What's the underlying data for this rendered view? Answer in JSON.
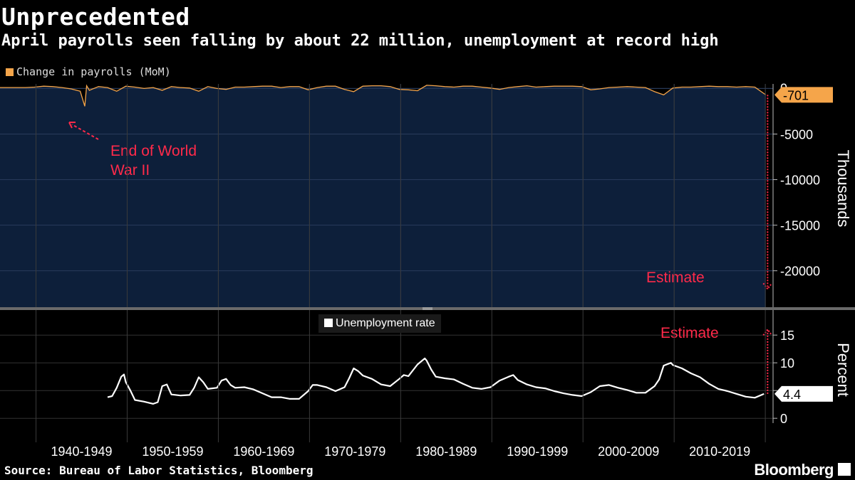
{
  "title": "Unprecedented",
  "subtitle": "April payrolls seen falling by about 22 million, unemployment at record high",
  "source": "Source: Bureau of Labor Statistics, Bloomberg",
  "brand": "Bloomberg",
  "colors": {
    "payrolls_line": "#f5a54a",
    "payrolls_fill": "#0d1f3a",
    "unemployment_line": "#ffffff",
    "annotation": "#ff2a4a",
    "background": "#000000"
  },
  "chart_data": [
    {
      "type": "area",
      "legend": "Change in payrolls (MoM)",
      "ylabel": "Thousands",
      "ylim": [
        -24000,
        500
      ],
      "yticks": [
        0,
        -5000,
        -10000,
        -15000,
        -20000
      ],
      "last_value_label": "-701",
      "annotations": [
        {
          "text": "End of World",
          "text2": "War II"
        },
        {
          "text": "Estimate"
        }
      ],
      "series": [
        {
          "x": [
            1939,
            1940,
            1941,
            1942,
            1943,
            1944,
            1945,
            1945.5,
            1945.7,
            1946,
            1947,
            1948,
            1949,
            1950,
            1951,
            1952,
            1953,
            1954,
            1955,
            1956,
            1957,
            1958,
            1959,
            1960,
            1961,
            1962,
            1963,
            1964,
            1965,
            1966,
            1967,
            1968,
            1969,
            1970,
            1971,
            1972,
            1973,
            1974,
            1975,
            1976,
            1977,
            1978,
            1979,
            1980,
            1981,
            1982,
            1983,
            1984,
            1985,
            1986,
            1987,
            1988,
            1989,
            1990,
            1991,
            1992,
            1993,
            1994,
            1995,
            1996,
            1997,
            1998,
            1999,
            2000,
            2001,
            2002,
            2003,
            2004,
            2005,
            2006,
            2007,
            2008,
            2009,
            2010,
            2011,
            2012,
            2013,
            2014,
            2015,
            2016,
            2017,
            2018,
            2019,
            2020.2
          ],
          "values": [
            100,
            150,
            250,
            200,
            100,
            -50,
            -300,
            -1950,
            300,
            -200,
            200,
            100,
            -300,
            250,
            150,
            0,
            100,
            -200,
            200,
            100,
            50,
            -300,
            200,
            0,
            -100,
            150,
            150,
            200,
            250,
            250,
            100,
            200,
            200,
            -150,
            100,
            250,
            250,
            -100,
            -350,
            250,
            300,
            300,
            200,
            -100,
            -150,
            -250,
            350,
            300,
            200,
            150,
            250,
            250,
            150,
            50,
            -100,
            100,
            200,
            300,
            150,
            200,
            250,
            250,
            250,
            200,
            -150,
            -50,
            100,
            150,
            200,
            150,
            100,
            -350,
            -700,
            50,
            150,
            150,
            200,
            250,
            200,
            200,
            150,
            200,
            150,
            -701
          ]
        }
      ],
      "estimate_value": -22000
    },
    {
      "type": "line",
      "legend": "Unemployment rate",
      "ylabel": "Percent",
      "ylim": [
        -1,
        19
      ],
      "yticks": [
        0,
        5,
        10,
        15
      ],
      "last_value_label": "4.4",
      "annotations": [
        {
          "text": "Estimate"
        }
      ],
      "x_categories": [
        "1940-1949",
        "1950-1959",
        "1960-1969",
        "1970-1979",
        "1980-1989",
        "1990-1999",
        "2000-2009",
        "2010-2019"
      ],
      "series": [
        {
          "x": [
            1948,
            1948.5,
            1949,
            1949.5,
            1949.8,
            1950,
            1950.5,
            1951,
            1952,
            1953,
            1953.5,
            1954,
            1954.5,
            1955,
            1956,
            1957,
            1957.5,
            1958,
            1958.5,
            1959,
            1960,
            1960.5,
            1961,
            1961.5,
            1962,
            1963,
            1964,
            1965,
            1966,
            1967,
            1968,
            1969,
            1970,
            1970.5,
            1971,
            1972,
            1973,
            1974,
            1974.5,
            1975,
            1975.5,
            1976,
            1977,
            1978,
            1979,
            1980,
            1980.5,
            1981,
            1982,
            1982.8,
            1983,
            1983.5,
            1984,
            1985,
            1986,
            1987,
            1988,
            1989,
            1990,
            1991,
            1992,
            1992.5,
            1993,
            1994,
            1995,
            1996,
            1997,
            1998,
            1999,
            2000,
            2001,
            2002,
            2003,
            2004,
            2005,
            2006,
            2007,
            2008,
            2008.5,
            2009,
            2009.8,
            2010,
            2011,
            2012,
            2013,
            2014,
            2015,
            2016,
            2017,
            2018,
            2019,
            2020
          ],
          "values": [
            3.8,
            4.0,
            5.5,
            7.5,
            7.9,
            6.5,
            5.0,
            3.3,
            3.0,
            2.6,
            2.9,
            5.8,
            6.1,
            4.3,
            4.1,
            4.2,
            5.5,
            7.4,
            6.5,
            5.3,
            5.5,
            6.8,
            7.1,
            6.0,
            5.5,
            5.6,
            5.2,
            4.5,
            3.8,
            3.8,
            3.5,
            3.5,
            4.9,
            6.0,
            6.0,
            5.6,
            4.9,
            5.6,
            7.2,
            9.0,
            8.5,
            7.7,
            7.1,
            6.1,
            5.8,
            7.1,
            7.8,
            7.6,
            9.7,
            10.8,
            10.4,
            8.8,
            7.5,
            7.2,
            7.0,
            6.2,
            5.5,
            5.3,
            5.6,
            6.8,
            7.5,
            7.8,
            6.9,
            6.1,
            5.6,
            5.4,
            4.9,
            4.5,
            4.2,
            4.0,
            4.7,
            5.8,
            6.0,
            5.5,
            5.1,
            4.6,
            4.6,
            5.8,
            7.0,
            9.5,
            10.0,
            9.6,
            9.0,
            8.1,
            7.4,
            6.2,
            5.3,
            4.9,
            4.4,
            3.9,
            3.7,
            4.4
          ]
        }
      ],
      "estimate_value": 16.0
    }
  ]
}
